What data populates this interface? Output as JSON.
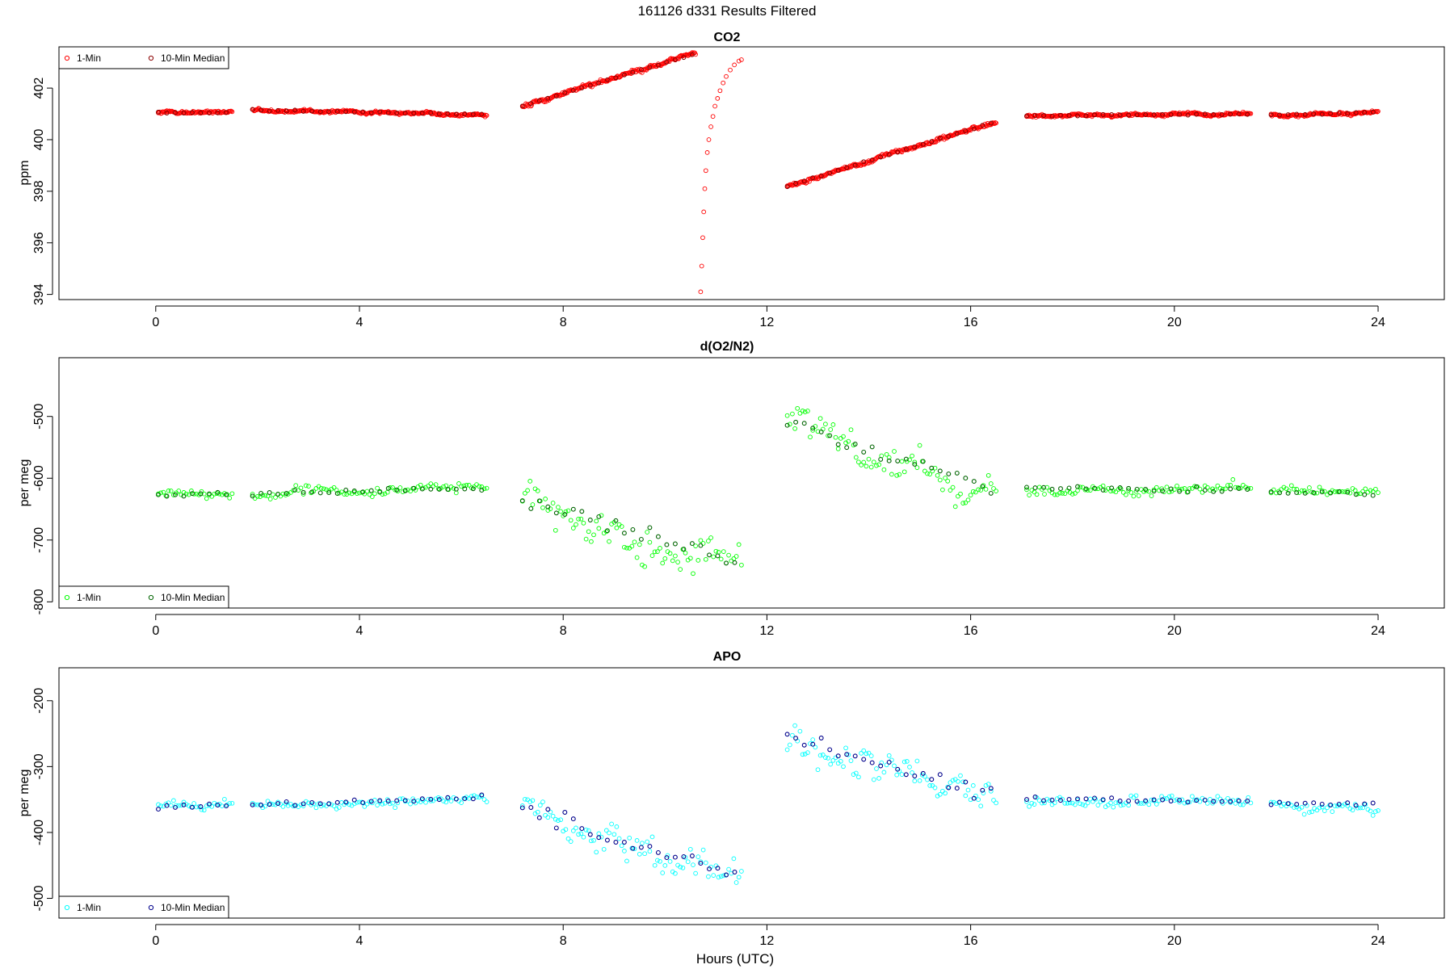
{
  "figure": {
    "title": "161126   d331   Results Filtered",
    "xlabel": "Hours (UTC)"
  },
  "colors": {
    "co2_1min": "#ff0000",
    "co2_median": "#8b0000",
    "o2_1min": "#00ff00",
    "o2_median": "#006400",
    "apo_1min": "#00ffff",
    "apo_median": "#00008b"
  },
  "chart_data": [
    {
      "type": "scatter",
      "title": "CO2",
      "xlabel": "",
      "ylabel": "ppm",
      "xlim": [
        -1.9,
        25.3
      ],
      "ylim": [
        393.8,
        403.6
      ],
      "xticks": [
        0,
        4,
        8,
        12,
        16,
        20,
        24
      ],
      "yticks": [
        394,
        396,
        398,
        400,
        402
      ],
      "grid": false,
      "legend_position": "top-left",
      "legend": [
        "1-Min",
        "10-Min Median"
      ],
      "segments": [
        {
          "x_start": 0.05,
          "x_end": 1.5,
          "y_start": 401.05,
          "y_end": 401.05,
          "noise": 0.05,
          "step_min": 1
        },
        {
          "x_start": 1.9,
          "x_end": 6.5,
          "y_start": 401.15,
          "y_end": 400.98,
          "noise": 0.05,
          "step_min": 1
        },
        {
          "x_start": 7.2,
          "x_end": 10.6,
          "y_start": 401.3,
          "y_end": 403.35,
          "noise": 0.07,
          "step_min": 1
        },
        {
          "x_start": 12.4,
          "x_end": 16.5,
          "y_start": 398.2,
          "y_end": 400.7,
          "noise": 0.06,
          "step_min": 1
        },
        {
          "x_start": 17.1,
          "x_end": 21.5,
          "y_start": 400.92,
          "y_end": 401.0,
          "noise": 0.05,
          "step_min": 1
        },
        {
          "x_start": 21.9,
          "x_end": 24.0,
          "y_start": 400.95,
          "y_end": 401.05,
          "noise": 0.05,
          "step_min": 1
        }
      ],
      "recovery_curve": {
        "x": [
          10.7,
          10.72,
          10.74,
          10.76,
          10.78,
          10.8,
          10.83,
          10.86,
          10.9,
          10.94,
          10.98,
          11.03,
          11.08,
          11.14,
          11.2,
          11.28,
          11.36,
          11.45,
          11.5
        ],
        "y": [
          394.1,
          395.1,
          396.2,
          397.2,
          398.1,
          398.8,
          399.5,
          400.0,
          400.5,
          400.9,
          401.3,
          401.6,
          401.9,
          402.2,
          402.45,
          402.7,
          402.9,
          403.05,
          403.1
        ]
      }
    },
    {
      "type": "scatter",
      "title": "d(O2/N2)",
      "xlabel": "",
      "ylabel": "per meg",
      "xlim": [
        -1.9,
        25.3
      ],
      "ylim": [
        -810,
        -405
      ],
      "xticks": [
        0,
        4,
        8,
        12,
        16,
        20,
        24
      ],
      "yticks": [
        -800,
        -700,
        -600,
        -500
      ],
      "grid": false,
      "legend_position": "bottom-left",
      "legend": [
        "1-Min",
        "10-Min Median"
      ],
      "segments": [
        {
          "x_start": 0.05,
          "x_end": 1.5,
          "y_start": -628,
          "y_end": -625,
          "noise": 7,
          "step_min": 3
        },
        {
          "x_start": 1.9,
          "x_end": 6.5,
          "y_start": -626,
          "y_end": -615,
          "noise": 7,
          "step_min": 3
        },
        {
          "x_start": 7.2,
          "x_end": 11.5,
          "y_start": -630,
          "y_end": -740,
          "noise": 25,
          "step_min": 3
        },
        {
          "x_start": 12.4,
          "x_end": 16.5,
          "y_start": -510,
          "y_end": -615,
          "noise": 25,
          "step_min": 3
        },
        {
          "x_start": 17.1,
          "x_end": 21.5,
          "y_start": -616,
          "y_end": -620,
          "noise": 8,
          "step_min": 3
        },
        {
          "x_start": 21.9,
          "x_end": 24.0,
          "y_start": -623,
          "y_end": -625,
          "noise": 7,
          "step_min": 3
        }
      ]
    },
    {
      "type": "scatter",
      "title": "APO",
      "xlabel": "Hours (UTC)",
      "ylabel": "per meg",
      "xlim": [
        -1.9,
        25.3
      ],
      "ylim": [
        -530,
        -150
      ],
      "xticks": [
        0,
        4,
        8,
        12,
        16,
        20,
        24
      ],
      "yticks": [
        -500,
        -400,
        -300,
        -200
      ],
      "grid": false,
      "legend_position": "bottom-left",
      "legend": [
        "1-Min",
        "10-Min Median"
      ],
      "segments": [
        {
          "x_start": 0.05,
          "x_end": 1.5,
          "y_start": -362,
          "y_end": -358,
          "noise": 7,
          "step_min": 3
        },
        {
          "x_start": 1.9,
          "x_end": 6.5,
          "y_start": -358,
          "y_end": -347,
          "noise": 7,
          "step_min": 3
        },
        {
          "x_start": 7.2,
          "x_end": 11.5,
          "y_start": -365,
          "y_end": -465,
          "noise": 25,
          "step_min": 3
        },
        {
          "x_start": 12.4,
          "x_end": 16.5,
          "y_start": -260,
          "y_end": -345,
          "noise": 25,
          "step_min": 3
        },
        {
          "x_start": 17.1,
          "x_end": 21.5,
          "y_start": -350,
          "y_end": -353,
          "noise": 8,
          "step_min": 3
        },
        {
          "x_start": 21.9,
          "x_end": 24.0,
          "y_start": -356,
          "y_end": -358,
          "noise": 7,
          "step_min": 3
        }
      ]
    }
  ]
}
